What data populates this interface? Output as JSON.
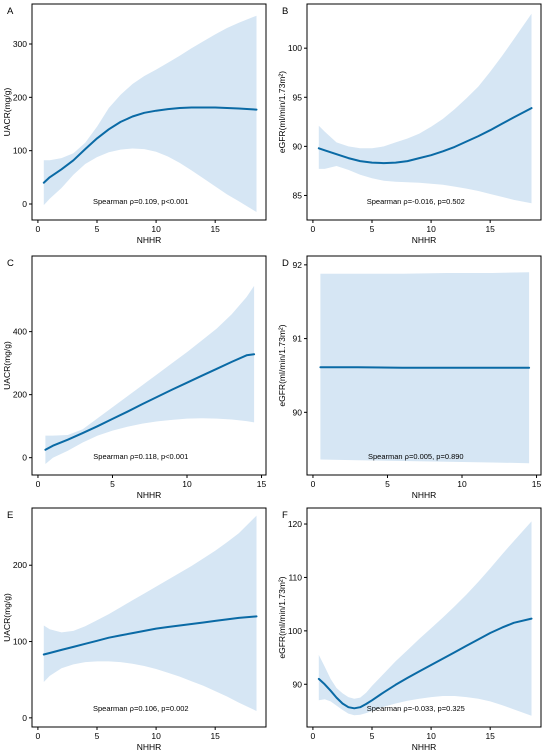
{
  "colors": {
    "line": "#0a6aa5",
    "band": "#d6e6f4",
    "frame": "#000000",
    "text": "#000000"
  },
  "chart_data": [
    {
      "type": "line",
      "panel_label": "A",
      "xlabel": "NHHR",
      "ylabel": "UACR(mg/g)",
      "xlim": [
        -0.5,
        19.3
      ],
      "ylim": [
        -30,
        375
      ],
      "xticks": [
        0,
        5,
        10,
        15
      ],
      "yticks": [
        0,
        100,
        200,
        300
      ],
      "annotation": "Spearman ρ=0.109, p<0.001",
      "series": [
        {
          "x": [
            0.5,
            1,
            2,
            3,
            4,
            5,
            6,
            7,
            8,
            9,
            10,
            11,
            12,
            13,
            14,
            15,
            16,
            17,
            18.5
          ],
          "y": [
            40,
            50,
            65,
            82,
            103,
            123,
            140,
            154,
            164,
            171,
            175,
            178,
            180,
            181,
            181,
            181,
            180,
            179,
            177
          ],
          "lower": [
            -2,
            10,
            30,
            55,
            75,
            88,
            97,
            102,
            104,
            103,
            98,
            89,
            77,
            63,
            48,
            33,
            18,
            5,
            -15
          ],
          "upper": [
            82,
            82,
            86,
            95,
            115,
            145,
            180,
            205,
            225,
            240,
            252,
            265,
            278,
            292,
            305,
            318,
            330,
            340,
            353
          ]
        }
      ]
    },
    {
      "type": "line",
      "panel_label": "B",
      "xlabel": "NHHR",
      "ylabel": "eGFR(ml/min/1.73m²)",
      "xlim": [
        -0.5,
        19.3
      ],
      "ylim": [
        82.5,
        104.5
      ],
      "xticks": [
        0,
        5,
        10,
        15
      ],
      "yticks": [
        85,
        90,
        95,
        100
      ],
      "annotation": "Spearman ρ=-0.016, p=0.502",
      "series": [
        {
          "x": [
            0.5,
            1,
            2,
            3,
            4,
            5,
            6,
            7,
            8,
            9,
            10,
            11,
            12,
            13,
            14,
            15,
            16,
            17,
            18.5
          ],
          "y": [
            89.8,
            89.6,
            89.2,
            88.8,
            88.5,
            88.35,
            88.3,
            88.35,
            88.5,
            88.8,
            89.1,
            89.5,
            89.95,
            90.5,
            91.05,
            91.65,
            92.3,
            92.95,
            93.9
          ],
          "lower": [
            87.7,
            87.7,
            88.0,
            87.6,
            87.1,
            86.75,
            86.5,
            86.4,
            86.35,
            86.3,
            86.2,
            86.1,
            85.9,
            85.7,
            85.45,
            85.15,
            84.85,
            84.55,
            84.2
          ],
          "upper": [
            92.1,
            91.5,
            90.4,
            90.0,
            89.8,
            89.8,
            90.0,
            90.4,
            90.8,
            91.3,
            92.0,
            92.8,
            93.8,
            94.9,
            96.1,
            97.6,
            99.2,
            100.9,
            103.5
          ]
        }
      ]
    },
    {
      "type": "line",
      "panel_label": "C",
      "xlabel": "NHHR",
      "ylabel": "UACR(mg/g)",
      "xlim": [
        -0.4,
        15.3
      ],
      "ylim": [
        -55,
        640
      ],
      "xticks": [
        0,
        5,
        10,
        15
      ],
      "yticks": [
        0,
        200,
        400
      ],
      "annotation": "Spearman ρ=0.118, p<0.001",
      "series": [
        {
          "x": [
            0.5,
            1,
            2,
            3,
            4,
            5,
            6,
            7,
            8,
            9,
            10,
            11,
            12,
            13,
            14,
            14.5
          ],
          "y": [
            25,
            38,
            57,
            78,
            100,
            123,
            146,
            170,
            193,
            216,
            238,
            260,
            282,
            304,
            325,
            328
          ],
          "lower": [
            -20,
            0,
            22,
            48,
            70,
            86,
            98,
            108,
            115,
            120,
            124,
            125,
            124,
            121,
            116,
            112
          ],
          "upper": [
            70,
            70,
            72,
            90,
            125,
            160,
            195,
            230,
            265,
            300,
            335,
            372,
            410,
            455,
            510,
            545
          ]
        }
      ]
    },
    {
      "type": "line",
      "panel_label": "D",
      "xlabel": "NHHR",
      "ylabel": "eGFR(ml/min/1.73m²)",
      "xlim": [
        -0.4,
        15.3
      ],
      "ylim": [
        89.15,
        92.12
      ],
      "xticks": [
        0,
        5,
        10,
        15
      ],
      "yticks": [
        90,
        91,
        92
      ],
      "annotation": "Spearman ρ=0.005, p=0.890",
      "series": [
        {
          "x": [
            0.5,
            3,
            6,
            9,
            12,
            14.5
          ],
          "y": [
            90.61,
            90.61,
            90.605,
            90.605,
            90.605,
            90.605
          ],
          "lower": [
            89.36,
            89.35,
            89.34,
            89.33,
            89.32,
            89.31
          ],
          "upper": [
            91.88,
            91.88,
            91.88,
            91.89,
            91.89,
            91.9
          ]
        }
      ]
    },
    {
      "type": "line",
      "panel_label": "E",
      "xlabel": "NHHR",
      "ylabel": "UACR(mg/g)",
      "xlim": [
        -0.5,
        19.3
      ],
      "ylim": [
        -12,
        275
      ],
      "xticks": [
        0,
        5,
        10,
        15
      ],
      "yticks": [
        0,
        100,
        200
      ],
      "annotation": "Spearman ρ=0.106, p=0.002",
      "series": [
        {
          "x": [
            0.5,
            1,
            2,
            3,
            4,
            5,
            6,
            7,
            8,
            9,
            10,
            11,
            12,
            13,
            14,
            15,
            16,
            17,
            18.5
          ],
          "y": [
            83,
            85,
            89,
            93,
            97,
            101,
            105,
            108,
            111,
            114,
            117,
            119,
            121,
            123,
            125,
            127,
            129,
            131,
            133
          ],
          "lower": [
            47,
            55,
            65,
            70,
            73,
            74,
            74,
            73,
            71,
            68,
            64,
            59,
            54,
            48,
            42,
            35,
            28,
            20,
            9
          ],
          "upper": [
            121,
            116,
            112,
            114,
            120,
            128,
            136,
            145,
            154,
            163,
            172,
            181,
            190,
            199,
            209,
            219,
            230,
            242,
            265
          ]
        }
      ]
    },
    {
      "type": "line",
      "panel_label": "F",
      "xlabel": "NHHR",
      "ylabel": "eGFR(ml/min/1.73m²)",
      "xlim": [
        -0.5,
        19.3
      ],
      "ylim": [
        82,
        123
      ],
      "xticks": [
        0,
        5,
        10,
        15
      ],
      "yticks": [
        90,
        100,
        110,
        120
      ],
      "annotation": "Spearman ρ=-0.033, p=0.325",
      "series": [
        {
          "x": [
            0.5,
            1,
            1.5,
            2,
            2.5,
            3,
            3.5,
            4,
            4.5,
            5,
            6,
            7,
            8,
            9,
            10,
            11,
            12,
            13,
            14,
            15,
            16,
            17,
            18.5
          ],
          "y": [
            91,
            90,
            88.8,
            87.5,
            86.4,
            85.7,
            85.5,
            85.7,
            86.3,
            87.0,
            88.5,
            89.9,
            91.2,
            92.4,
            93.6,
            94.8,
            96.0,
            97.2,
            98.4,
            99.6,
            100.6,
            101.5,
            102.3
          ],
          "lower": [
            87,
            87.2,
            86.8,
            86.0,
            85.2,
            84.5,
            84.2,
            84.3,
            84.6,
            85.0,
            85.8,
            86.4,
            86.9,
            87.3,
            87.6,
            87.8,
            87.8,
            87.6,
            87.3,
            86.8,
            86.1,
            85.3,
            84.1
          ],
          "upper": [
            95.5,
            93.3,
            91.0,
            89.3,
            88.3,
            87.6,
            87.3,
            87.5,
            88.4,
            89.7,
            92.0,
            94.3,
            96.4,
            98.5,
            100.5,
            102.5,
            104.6,
            106.8,
            109.2,
            111.7,
            114.3,
            116.8,
            120.5
          ]
        }
      ]
    }
  ]
}
